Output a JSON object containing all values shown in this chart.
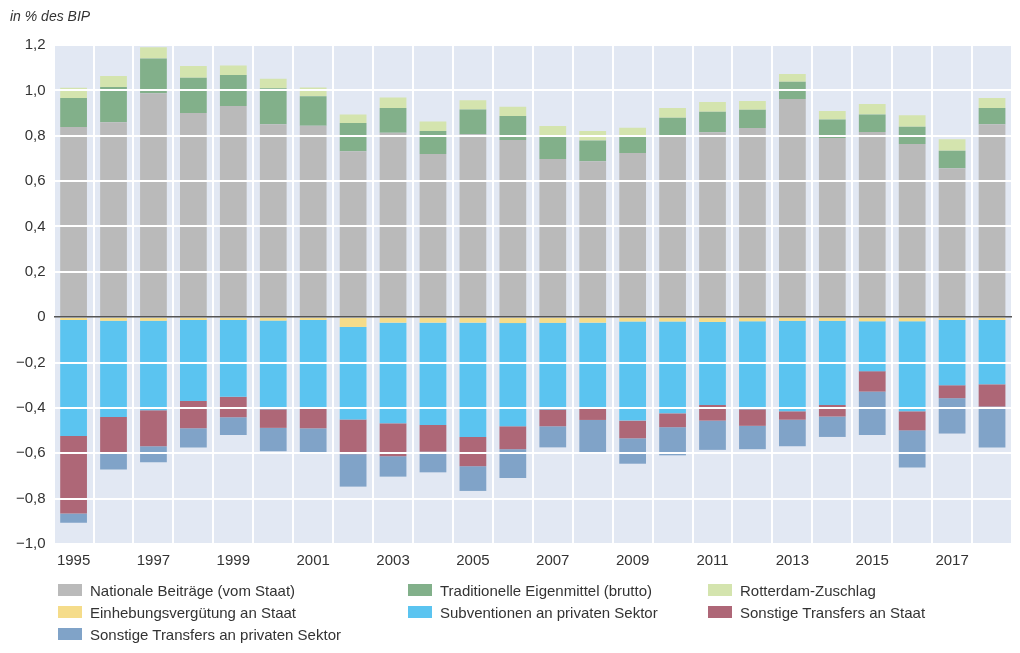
{
  "chart_data": {
    "type": "bar",
    "stacked": true,
    "ylabel": "in % des BIP",
    "categories": [
      "1995",
      null,
      "1997",
      null,
      "1999",
      null,
      "2001",
      null,
      "2003",
      null,
      "2005",
      null,
      "2007",
      null,
      "2009",
      null,
      "2011",
      null,
      "2013",
      null,
      "2015",
      null,
      "2017",
      null
    ],
    "series": [
      {
        "name": "Nationale Beiträge (vom Staat)",
        "color": "#bababa",
        "values": [
          0.838,
          0.859,
          0.987,
          0.9,
          0.931,
          0.851,
          0.844,
          0.732,
          0.813,
          0.719,
          0.807,
          0.781,
          0.697,
          0.687,
          0.724,
          0.803,
          0.815,
          0.834,
          0.962,
          0.79,
          0.816,
          0.763,
          0.657,
          0.851
        ]
      },
      {
        "name": "Traditionelle Eigenmittel (brutto)",
        "color": "#82b08a",
        "values": [
          0.128,
          0.156,
          0.154,
          0.156,
          0.137,
          0.158,
          0.13,
          0.124,
          0.109,
          0.102,
          0.109,
          0.106,
          0.103,
          0.092,
          0.072,
          0.076,
          0.091,
          0.081,
          0.076,
          0.081,
          0.078,
          0.077,
          0.077,
          0.071
        ]
      },
      {
        "name": "Rotterdam-Zuschlag",
        "color": "#d4e4ae",
        "values": [
          0.046,
          0.048,
          0.049,
          0.051,
          0.042,
          0.042,
          0.039,
          0.038,
          0.046,
          0.042,
          0.04,
          0.041,
          0.043,
          0.042,
          0.039,
          0.043,
          0.043,
          0.038,
          0.034,
          0.038,
          0.046,
          0.05,
          0.05,
          0.044
        ]
      },
      {
        "name": "Einhebungsvergütung an Staat",
        "color": "#f5dc8a",
        "values": [
          -0.012,
          -0.016,
          -0.016,
          -0.012,
          -0.012,
          -0.015,
          -0.012,
          -0.043,
          -0.024,
          -0.024,
          -0.024,
          -0.026,
          -0.025,
          -0.024,
          -0.019,
          -0.019,
          -0.021,
          -0.018,
          -0.016,
          -0.016,
          -0.018,
          -0.018,
          -0.012,
          -0.012
        ]
      },
      {
        "name": "Subventionen an privaten Sektor",
        "color": "#5bc4f0",
        "values": [
          -0.512,
          -0.424,
          -0.394,
          -0.357,
          -0.339,
          -0.391,
          -0.388,
          -0.408,
          -0.444,
          -0.451,
          -0.504,
          -0.455,
          -0.382,
          -0.372,
          -0.437,
          -0.405,
          -0.366,
          -0.388,
          -0.399,
          -0.371,
          -0.22,
          -0.397,
          -0.288,
          -0.284
        ]
      },
      {
        "name": "Sonstige Transfers an Staat",
        "color": "#ae6777",
        "values": [
          -0.341,
          -0.161,
          -0.159,
          -0.121,
          -0.09,
          -0.082,
          -0.09,
          -0.153,
          -0.145,
          -0.118,
          -0.129,
          -0.101,
          -0.074,
          -0.057,
          -0.078,
          -0.061,
          -0.069,
          -0.073,
          -0.037,
          -0.051,
          -0.09,
          -0.084,
          -0.057,
          -0.098
        ]
      },
      {
        "name": "Sonstige Transfers an privaten Sektor",
        "color": "#80a3c8",
        "values": [
          -0.041,
          -0.071,
          -0.071,
          -0.085,
          -0.078,
          -0.103,
          -0.109,
          -0.143,
          -0.09,
          -0.091,
          -0.109,
          -0.127,
          -0.093,
          -0.143,
          -0.112,
          -0.124,
          -0.129,
          -0.103,
          -0.117,
          -0.09,
          -0.191,
          -0.164,
          -0.156,
          -0.18
        ]
      }
    ],
    "ylim": [
      -1.0,
      1.2
    ],
    "yticks": [
      {
        "value": -1.0,
        "label": "−1,0"
      },
      {
        "value": -0.8,
        "label": "−0,8"
      },
      {
        "value": -0.6,
        "label": "−0,6"
      },
      {
        "value": -0.4,
        "label": "−0,4"
      },
      {
        "value": -0.2,
        "label": "−0,2"
      },
      0,
      {
        "value": 0.2,
        "label": "0,2"
      },
      {
        "value": 0.4,
        "label": "0,4"
      },
      {
        "value": 0.6,
        "label": "0,6"
      },
      {
        "value": 0.8,
        "label": "0,8"
      },
      {
        "value": 1.0,
        "label": "1,0"
      },
      {
        "value": 1.2,
        "label": "1,2"
      }
    ],
    "grid": true,
    "legend": "bottom"
  }
}
